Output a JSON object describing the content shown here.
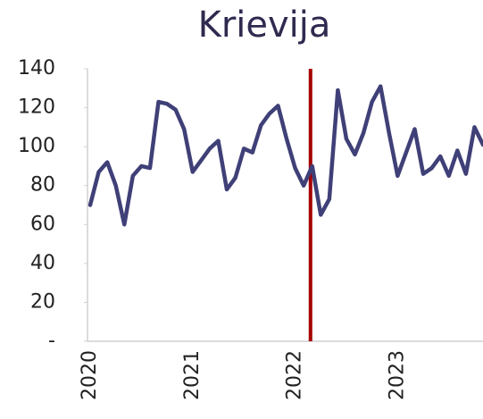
{
  "chart_data": {
    "type": "line",
    "title": "Krievija",
    "categories": [
      "2020",
      null,
      null,
      null,
      null,
      null,
      null,
      null,
      null,
      null,
      null,
      null,
      "2021",
      null,
      null,
      null,
      null,
      null,
      null,
      null,
      null,
      null,
      null,
      null,
      "2022",
      null,
      null,
      null,
      null,
      null,
      null,
      null,
      null,
      null,
      null,
      null,
      "2023",
      null,
      null,
      null,
      null,
      null,
      null,
      null,
      null,
      null,
      null
    ],
    "series": [
      {
        "color": "#404078",
        "values": [
          70,
          87,
          92,
          80,
          60,
          85,
          90,
          89,
          123,
          122,
          119,
          109,
          87,
          93,
          99,
          103,
          78,
          84,
          99,
          97,
          111,
          117,
          121,
          104,
          89,
          80,
          90,
          65,
          73,
          129,
          104,
          96,
          107,
          123,
          131,
          107,
          85,
          97,
          109,
          86,
          89,
          95,
          85,
          98,
          86,
          110,
          101
        ]
      }
    ],
    "ylim": [
      0,
      140
    ],
    "yticks": [
      {
        "value": 0,
        "label": "-"
      },
      20,
      40,
      60,
      80,
      100,
      120,
      140
    ],
    "grid": false,
    "vline": {
      "x": 25.8,
      "color": "#a50000"
    }
  }
}
